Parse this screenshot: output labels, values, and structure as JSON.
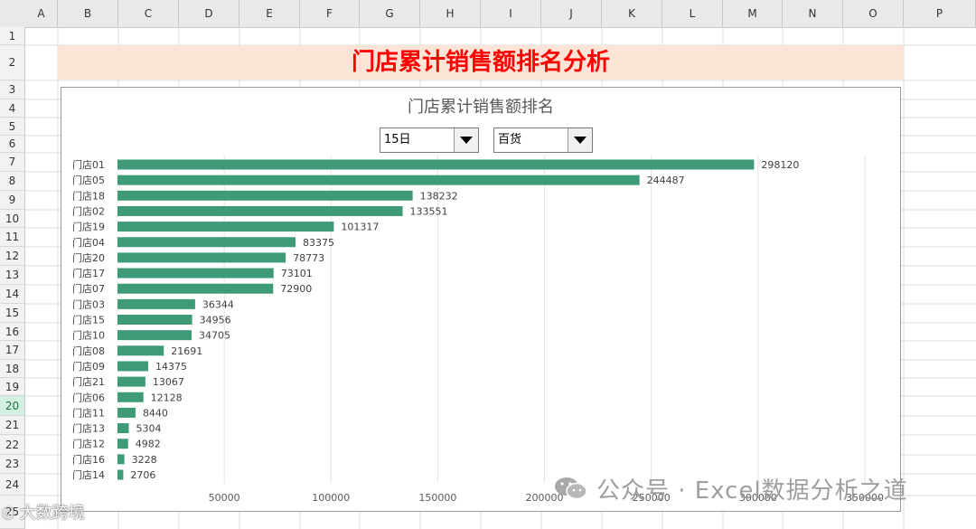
{
  "spreadsheet": {
    "columns": [
      "A",
      "B",
      "C",
      "D",
      "E",
      "F",
      "G",
      "H",
      "I",
      "J",
      "K",
      "L",
      "M",
      "N",
      "O",
      "P"
    ],
    "rows": [
      "1",
      "2",
      "3",
      "4",
      "5",
      "6",
      "7",
      "8",
      "9",
      "10",
      "11",
      "12",
      "13",
      "14",
      "15",
      "16",
      "17",
      "18",
      "19",
      "20",
      "21",
      "22",
      "23",
      "24",
      "25"
    ],
    "selected_row": "20"
  },
  "sheet_title": "门店累计销售额排名分析",
  "filters": {
    "day_value": "15日",
    "category_value": "百货"
  },
  "watermark": {
    "main": "公众号 · Excel数据分析之道",
    "corner": "大数跨境"
  },
  "colors": {
    "bar": "#3f9a76",
    "title_red": "#ff0000",
    "title_band": "#fce4d6"
  },
  "chart_data": {
    "type": "bar",
    "orientation": "horizontal",
    "title": "门店累计销售额排名",
    "categories": [
      "门店01",
      "门店05",
      "门店18",
      "门店02",
      "门店19",
      "门店04",
      "门店20",
      "门店17",
      "门店07",
      "门店03",
      "门店15",
      "门店10",
      "门店08",
      "门店09",
      "门店21",
      "门店06",
      "门店11",
      "门店13",
      "门店12",
      "门店16",
      "门店14"
    ],
    "values": [
      298120,
      244487,
      138232,
      133551,
      101317,
      83375,
      78773,
      73101,
      72900,
      36344,
      34956,
      34705,
      21691,
      14375,
      13067,
      12128,
      8440,
      5304,
      4982,
      3228,
      2706
    ],
    "x_ticks": [
      "50000",
      "100000",
      "150000",
      "200000",
      "250000",
      "300000",
      "350000"
    ],
    "xlim": [
      0,
      350000
    ],
    "grid": true,
    "data_labels": true
  }
}
